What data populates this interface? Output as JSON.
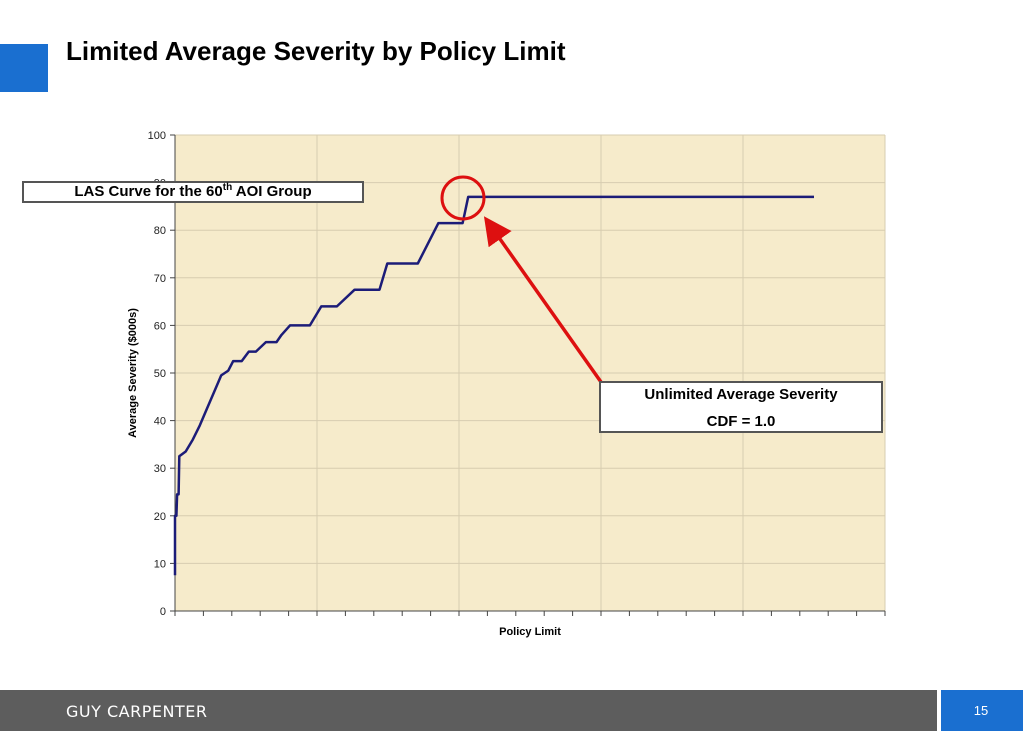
{
  "slide": {
    "title": "Limited Average Severity by Policy Limit",
    "accent_color": "#1a6fd0",
    "footer_brand": "GUY CARPENTER",
    "page_number": "15"
  },
  "annotations": {
    "las_label_prefix": "LAS Curve for the 60",
    "las_label_sup": "th",
    "las_label_suffix": " AOI Group",
    "callout_line1": "Unlimited Average Severity",
    "callout_line2": "CDF = 1.0",
    "arrow_color": "#dd1010",
    "circle_color": "#dd1010"
  },
  "chart_data": {
    "type": "line",
    "title": "",
    "xlabel": "Policy Limit",
    "ylabel": "Average Severity ($000s)",
    "ylim": [
      0,
      100
    ],
    "yticks": [
      0,
      10,
      20,
      30,
      40,
      50,
      60,
      70,
      80,
      90,
      100
    ],
    "xlim": [
      0,
      100
    ],
    "x_gridlines": [
      0,
      20,
      40,
      60,
      80,
      100
    ],
    "x_minor_ticks": 25,
    "grid": true,
    "plot_background": "#f6ebcb",
    "line_color": "#1c1c78",
    "series": [
      {
        "name": "",
        "x": [
          0,
          0,
          0.2,
          0.3,
          0.5,
          0.6,
          1.5,
          2.5,
          3.5,
          4.5,
          5.5,
          6.5,
          7.5,
          8.2,
          9.4,
          10.4,
          11.4,
          12.8,
          14.3,
          15,
          16.2,
          17.2,
          18.1,
          19,
          20.6,
          21,
          22.8,
          25.3,
          26.4,
          28.8,
          29.9,
          33.3,
          34.2,
          37.1,
          39.8,
          40.5,
          40.8,
          41.3,
          55,
          72.8,
          90
        ],
        "y": [
          7.5,
          20,
          20,
          24.5,
          24.5,
          32.5,
          33.5,
          36,
          39,
          42.5,
          46,
          49.5,
          50.5,
          52.5,
          52.5,
          54.5,
          54.5,
          56.5,
          56.5,
          58,
          60,
          60,
          60,
          60,
          64,
          64,
          64,
          67.5,
          67.5,
          67.5,
          73,
          73,
          73,
          81.5,
          81.5,
          81.5,
          83.5,
          87,
          87,
          87,
          87
        ]
      }
    ]
  }
}
